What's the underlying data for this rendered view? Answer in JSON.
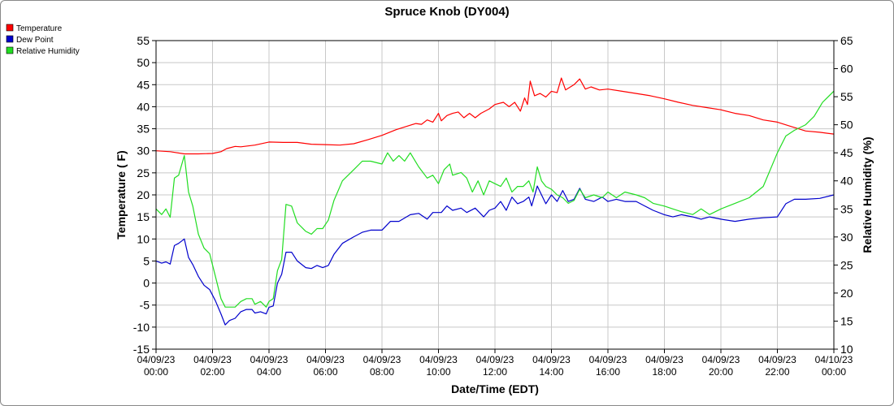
{
  "chart_data": {
    "type": "line",
    "title": "Spruce Knob (DY004)",
    "xlabel": "Date/Time (EDT)",
    "ylabel": "Temperature ( F)",
    "y2label": "Relative Humidity (%)",
    "ylim": [
      -15,
      55
    ],
    "y2lim": [
      10,
      65
    ],
    "yticks": [
      -15,
      -10,
      -5,
      0,
      5,
      10,
      15,
      20,
      25,
      30,
      35,
      40,
      45,
      50,
      55
    ],
    "y2ticks": [
      10,
      15,
      20,
      25,
      30,
      35,
      40,
      45,
      50,
      55,
      60,
      65
    ],
    "xlim_hours": [
      0,
      24
    ],
    "grid": true,
    "legend_position": "top-left",
    "xticks": [
      {
        "hour": 0,
        "date": "04/09/23",
        "time": "00:00"
      },
      {
        "hour": 2,
        "date": "04/09/23",
        "time": "02:00"
      },
      {
        "hour": 4,
        "date": "04/09/23",
        "time": "04:00"
      },
      {
        "hour": 6,
        "date": "04/09/23",
        "time": "06:00"
      },
      {
        "hour": 8,
        "date": "04/09/23",
        "time": "08:00"
      },
      {
        "hour": 10,
        "date": "04/09/23",
        "time": "10:00"
      },
      {
        "hour": 12,
        "date": "04/09/23",
        "time": "12:00"
      },
      {
        "hour": 14,
        "date": "04/09/23",
        "time": "14:00"
      },
      {
        "hour": 16,
        "date": "04/09/23",
        "time": "16:00"
      },
      {
        "hour": 18,
        "date": "04/09/23",
        "time": "18:00"
      },
      {
        "hour": 20,
        "date": "04/09/23",
        "time": "20:00"
      },
      {
        "hour": 22,
        "date": "04/09/23",
        "time": "22:00"
      },
      {
        "hour": 24,
        "date": "04/10/23",
        "time": "00:00"
      }
    ],
    "series": [
      {
        "name": "Temperature",
        "color": "#ff0000",
        "axis": "left",
        "points": [
          [
            0,
            30
          ],
          [
            0.5,
            29.8
          ],
          [
            1,
            29.3
          ],
          [
            1.5,
            29.3
          ],
          [
            2,
            29.4
          ],
          [
            2.3,
            29.8
          ],
          [
            2.5,
            30.5
          ],
          [
            2.8,
            31
          ],
          [
            3,
            30.9
          ],
          [
            3.5,
            31.3
          ],
          [
            4,
            32
          ],
          [
            4.5,
            31.9
          ],
          [
            5,
            31.9
          ],
          [
            5.5,
            31.5
          ],
          [
            6,
            31.4
          ],
          [
            6.5,
            31.3
          ],
          [
            7,
            31.6
          ],
          [
            7.5,
            32.5
          ],
          [
            8,
            33.5
          ],
          [
            8.5,
            34.8
          ],
          [
            9,
            35.8
          ],
          [
            9.2,
            36.2
          ],
          [
            9.4,
            36
          ],
          [
            9.6,
            37
          ],
          [
            9.8,
            36.5
          ],
          [
            10,
            38.5
          ],
          [
            10.1,
            36.8
          ],
          [
            10.3,
            38
          ],
          [
            10.5,
            38.5
          ],
          [
            10.7,
            38.8
          ],
          [
            10.9,
            37.5
          ],
          [
            11.1,
            38.5
          ],
          [
            11.3,
            37.5
          ],
          [
            11.5,
            38.5
          ],
          [
            11.8,
            39.5
          ],
          [
            12,
            40.5
          ],
          [
            12.3,
            41
          ],
          [
            12.5,
            40
          ],
          [
            12.7,
            41
          ],
          [
            12.9,
            39
          ],
          [
            13.05,
            42
          ],
          [
            13.15,
            40.5
          ],
          [
            13.25,
            45.8
          ],
          [
            13.4,
            42.5
          ],
          [
            13.6,
            43
          ],
          [
            13.8,
            42.2
          ],
          [
            14,
            43.5
          ],
          [
            14.2,
            43.2
          ],
          [
            14.35,
            46.5
          ],
          [
            14.5,
            43.8
          ],
          [
            14.8,
            45
          ],
          [
            15,
            46.3
          ],
          [
            15.2,
            44
          ],
          [
            15.4,
            44.5
          ],
          [
            15.7,
            43.8
          ],
          [
            16,
            44
          ],
          [
            16.5,
            43.5
          ],
          [
            17,
            43
          ],
          [
            17.5,
            42.5
          ],
          [
            18,
            41.8
          ],
          [
            18.5,
            41
          ],
          [
            19,
            40.3
          ],
          [
            19.5,
            39.8
          ],
          [
            20,
            39.3
          ],
          [
            20.5,
            38.5
          ],
          [
            21,
            38
          ],
          [
            21.5,
            37
          ],
          [
            22,
            36.5
          ],
          [
            22.5,
            35.5
          ],
          [
            23,
            34.5
          ],
          [
            23.5,
            34.2
          ],
          [
            24,
            33.8
          ]
        ]
      },
      {
        "name": "Dew Point",
        "color": "#0000cc",
        "axis": "left",
        "points": [
          [
            0,
            5
          ],
          [
            0.2,
            4.5
          ],
          [
            0.35,
            4.8
          ],
          [
            0.5,
            4.3
          ],
          [
            0.65,
            8.5
          ],
          [
            0.8,
            9
          ],
          [
            1,
            10
          ],
          [
            1.15,
            5.8
          ],
          [
            1.3,
            4.2
          ],
          [
            1.5,
            1.5
          ],
          [
            1.7,
            -0.5
          ],
          [
            1.9,
            -1.5
          ],
          [
            2.1,
            -4
          ],
          [
            2.3,
            -7
          ],
          [
            2.45,
            -9.5
          ],
          [
            2.6,
            -8.5
          ],
          [
            2.8,
            -8
          ],
          [
            3,
            -6.5
          ],
          [
            3.2,
            -6
          ],
          [
            3.4,
            -6
          ],
          [
            3.5,
            -6.8
          ],
          [
            3.7,
            -6.5
          ],
          [
            3.9,
            -7
          ],
          [
            4,
            -5.5
          ],
          [
            4.15,
            -5.2
          ],
          [
            4.3,
            0
          ],
          [
            4.45,
            2
          ],
          [
            4.6,
            7
          ],
          [
            4.8,
            7
          ],
          [
            5,
            5
          ],
          [
            5.3,
            3.5
          ],
          [
            5.5,
            3.3
          ],
          [
            5.7,
            4
          ],
          [
            5.9,
            3.5
          ],
          [
            6.1,
            4
          ],
          [
            6.3,
            6.5
          ],
          [
            6.6,
            9
          ],
          [
            7,
            10.5
          ],
          [
            7.3,
            11.5
          ],
          [
            7.6,
            12
          ],
          [
            8,
            12
          ],
          [
            8.3,
            14
          ],
          [
            8.6,
            14
          ],
          [
            9,
            15.5
          ],
          [
            9.3,
            15.8
          ],
          [
            9.6,
            14.5
          ],
          [
            9.8,
            16
          ],
          [
            10.1,
            16
          ],
          [
            10.3,
            17.5
          ],
          [
            10.5,
            16.5
          ],
          [
            10.8,
            17
          ],
          [
            11,
            16
          ],
          [
            11.3,
            17
          ],
          [
            11.6,
            15
          ],
          [
            11.8,
            16.5
          ],
          [
            12,
            17
          ],
          [
            12.2,
            18.5
          ],
          [
            12.4,
            16.5
          ],
          [
            12.6,
            19.5
          ],
          [
            12.8,
            18
          ],
          [
            13,
            18.5
          ],
          [
            13.2,
            19.5
          ],
          [
            13.3,
            17.5
          ],
          [
            13.5,
            22
          ],
          [
            13.65,
            20
          ],
          [
            13.8,
            18
          ],
          [
            14,
            20
          ],
          [
            14.2,
            18.5
          ],
          [
            14.4,
            21
          ],
          [
            14.6,
            18.5
          ],
          [
            14.8,
            19
          ],
          [
            15,
            21.5
          ],
          [
            15.2,
            19
          ],
          [
            15.5,
            18.5
          ],
          [
            15.8,
            19.5
          ],
          [
            16,
            18.5
          ],
          [
            16.3,
            19
          ],
          [
            16.6,
            18.5
          ],
          [
            17,
            18.5
          ],
          [
            17.3,
            17.5
          ],
          [
            17.6,
            16.5
          ],
          [
            18,
            15.5
          ],
          [
            18.3,
            15
          ],
          [
            18.6,
            15.5
          ],
          [
            19,
            15
          ],
          [
            19.3,
            14.5
          ],
          [
            19.6,
            15
          ],
          [
            20,
            14.5
          ],
          [
            20.5,
            14
          ],
          [
            21,
            14.5
          ],
          [
            21.5,
            14.8
          ],
          [
            22,
            15
          ],
          [
            22.3,
            18
          ],
          [
            22.6,
            19
          ],
          [
            23,
            19
          ],
          [
            23.5,
            19.2
          ],
          [
            24,
            20
          ]
        ]
      },
      {
        "name": "Relative Humidity",
        "color": "#22dd22",
        "axis": "right",
        "points": [
          [
            0,
            35
          ],
          [
            0.2,
            34
          ],
          [
            0.35,
            35
          ],
          [
            0.5,
            33.5
          ],
          [
            0.65,
            40.5
          ],
          [
            0.8,
            41
          ],
          [
            1,
            44.5
          ],
          [
            1.15,
            38
          ],
          [
            1.3,
            35.5
          ],
          [
            1.5,
            30.5
          ],
          [
            1.7,
            28
          ],
          [
            1.9,
            27
          ],
          [
            2.1,
            23
          ],
          [
            2.3,
            19
          ],
          [
            2.45,
            17.5
          ],
          [
            2.6,
            17.5
          ],
          [
            2.8,
            17.5
          ],
          [
            3,
            18.5
          ],
          [
            3.2,
            19
          ],
          [
            3.4,
            19
          ],
          [
            3.5,
            18
          ],
          [
            3.7,
            18.5
          ],
          [
            3.9,
            17.5
          ],
          [
            4,
            18.5
          ],
          [
            4.15,
            19
          ],
          [
            4.3,
            24
          ],
          [
            4.45,
            26
          ],
          [
            4.6,
            35.8
          ],
          [
            4.8,
            35.5
          ],
          [
            5,
            32.5
          ],
          [
            5.3,
            31
          ],
          [
            5.5,
            30.5
          ],
          [
            5.7,
            31.5
          ],
          [
            5.9,
            31.5
          ],
          [
            6.1,
            33
          ],
          [
            6.3,
            36.5
          ],
          [
            6.6,
            40
          ],
          [
            7,
            42
          ],
          [
            7.3,
            43.5
          ],
          [
            7.6,
            43.5
          ],
          [
            8,
            43
          ],
          [
            8.2,
            45
          ],
          [
            8.4,
            43.5
          ],
          [
            8.6,
            44.5
          ],
          [
            8.8,
            43.5
          ],
          [
            9,
            45
          ],
          [
            9.3,
            42.5
          ],
          [
            9.6,
            40.5
          ],
          [
            9.8,
            41
          ],
          [
            10,
            39.5
          ],
          [
            10.2,
            42
          ],
          [
            10.4,
            43
          ],
          [
            10.5,
            41
          ],
          [
            10.8,
            41.5
          ],
          [
            11,
            40.5
          ],
          [
            11.2,
            38
          ],
          [
            11.4,
            40
          ],
          [
            11.6,
            37.5
          ],
          [
            11.8,
            40
          ],
          [
            12,
            39.5
          ],
          [
            12.2,
            39
          ],
          [
            12.4,
            40.5
          ],
          [
            12.6,
            38
          ],
          [
            12.8,
            39
          ],
          [
            13,
            39
          ],
          [
            13.2,
            40
          ],
          [
            13.35,
            38
          ],
          [
            13.5,
            42.5
          ],
          [
            13.65,
            40
          ],
          [
            13.8,
            39
          ],
          [
            14,
            38.5
          ],
          [
            14.2,
            37.5
          ],
          [
            14.4,
            37
          ],
          [
            14.6,
            36
          ],
          [
            14.8,
            36.5
          ],
          [
            15,
            38.5
          ],
          [
            15.2,
            37
          ],
          [
            15.5,
            37.5
          ],
          [
            15.8,
            37
          ],
          [
            16,
            38
          ],
          [
            16.3,
            37
          ],
          [
            16.6,
            38
          ],
          [
            17,
            37.5
          ],
          [
            17.3,
            37
          ],
          [
            17.6,
            36
          ],
          [
            18,
            35.5
          ],
          [
            18.3,
            35
          ],
          [
            18.6,
            34.5
          ],
          [
            19,
            34
          ],
          [
            19.3,
            35
          ],
          [
            19.6,
            34
          ],
          [
            20,
            35
          ],
          [
            20.5,
            36
          ],
          [
            21,
            37
          ],
          [
            21.5,
            39
          ],
          [
            22,
            45
          ],
          [
            22.3,
            48
          ],
          [
            22.6,
            49
          ],
          [
            23,
            50
          ],
          [
            23.3,
            51.5
          ],
          [
            23.6,
            54
          ],
          [
            24,
            56
          ]
        ]
      }
    ]
  }
}
